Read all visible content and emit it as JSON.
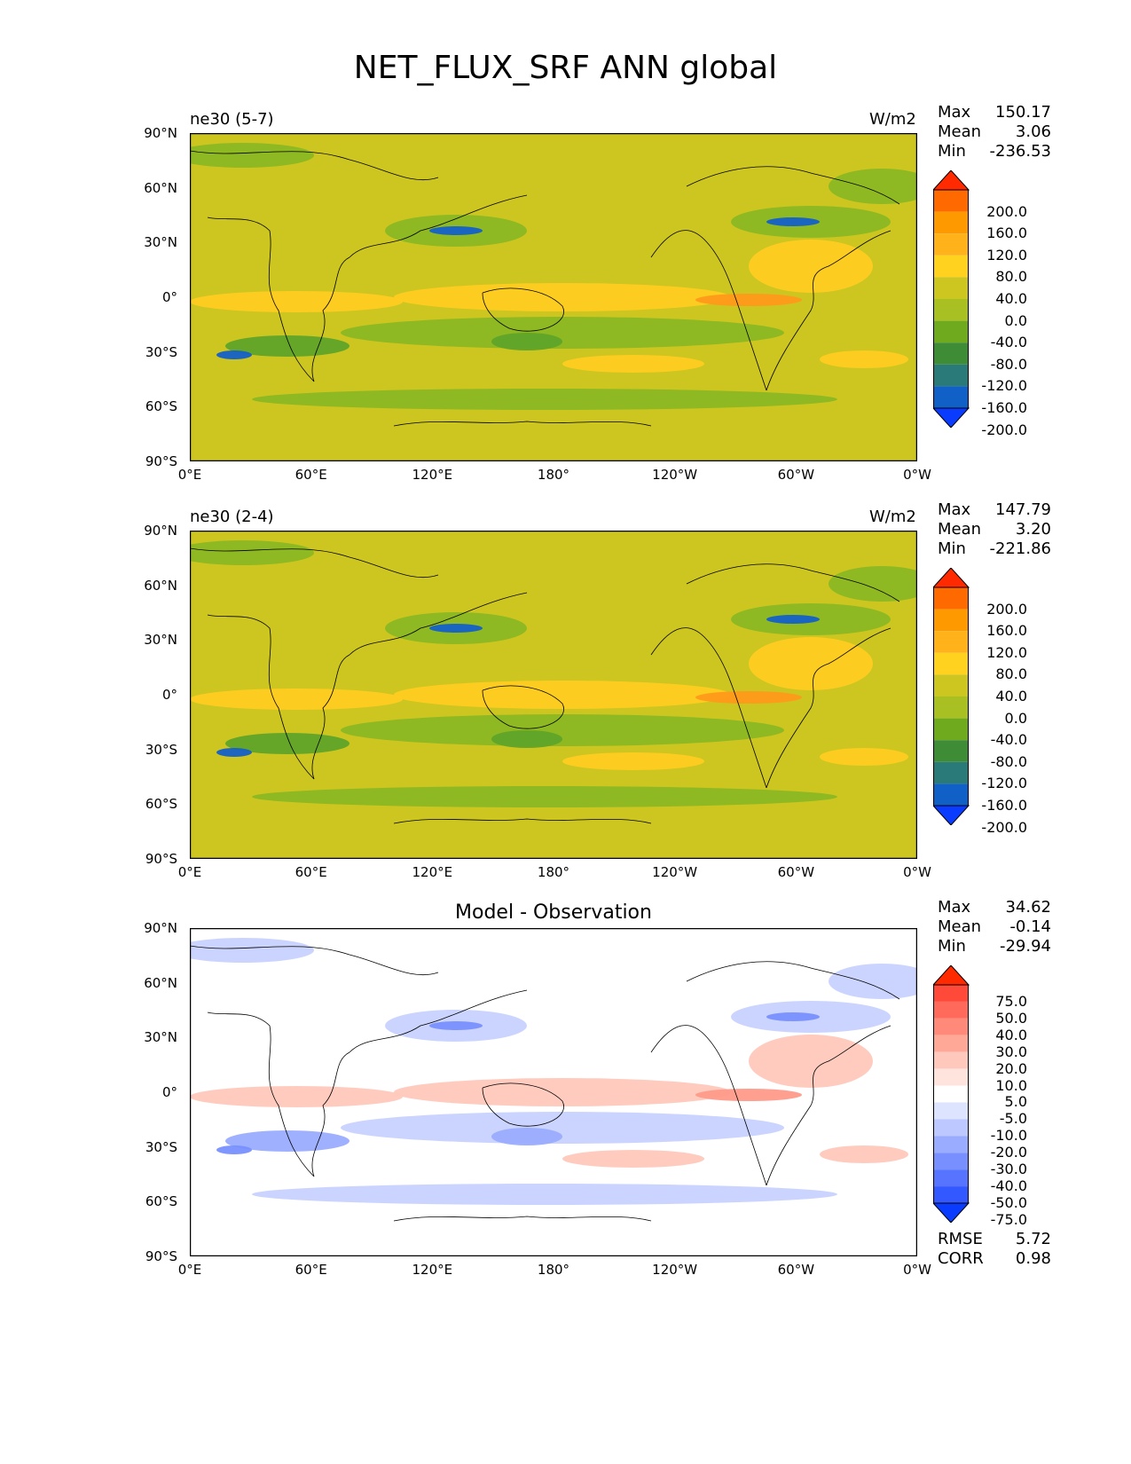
{
  "title": "NET_FLUX_SRF ANN global",
  "axes": {
    "lat_ticks": [
      "90°N",
      "60°N",
      "30°N",
      "0°",
      "30°S",
      "60°S",
      "90°S"
    ],
    "lon_ticks": [
      "0°E",
      "60°E",
      "120°E",
      "180°",
      "120°W",
      "60°W",
      "0°W"
    ]
  },
  "panels": [
    {
      "name": "ne30 (5-7)",
      "units": "W/m2",
      "center_title": "",
      "stats": {
        "max_label": "Max",
        "max": "150.17",
        "mean_label": "Mean",
        "mean": "3.06",
        "min_label": "Min",
        "min": "-236.53"
      },
      "colorbar": {
        "labels": [
          "200.0",
          "160.0",
          "120.0",
          "80.0",
          "40.0",
          "0.0",
          "-40.0",
          "-80.0",
          "-120.0",
          "-160.0",
          "-200.0"
        ],
        "colors": [
          "#ff2a00",
          "#ff6a00",
          "#ff9900",
          "#ffb21a",
          "#ffd21f",
          "#cdc620",
          "#a8c022",
          "#6faa1e",
          "#3e8c35",
          "#2a7a7a",
          "#1060c8",
          "#0a3cff"
        ]
      },
      "map_colors": {
        "base": "#cdc620",
        "positive": "#ffcc22",
        "positive_strong": "#ff9a1a",
        "negative": "#8ab823",
        "negative_mid": "#5fa42a",
        "negative_strong": "#1460c8"
      }
    },
    {
      "name": "ne30 (2-4)",
      "units": "W/m2",
      "center_title": "",
      "stats": {
        "max_label": "Max",
        "max": "147.79",
        "mean_label": "Mean",
        "mean": "3.20",
        "min_label": "Min",
        "min": "-221.86"
      },
      "colorbar": {
        "labels": [
          "200.0",
          "160.0",
          "120.0",
          "80.0",
          "40.0",
          "0.0",
          "-40.0",
          "-80.0",
          "-120.0",
          "-160.0",
          "-200.0"
        ],
        "colors": [
          "#ff2a00",
          "#ff6a00",
          "#ff9900",
          "#ffb21a",
          "#ffd21f",
          "#cdc620",
          "#a8c022",
          "#6faa1e",
          "#3e8c35",
          "#2a7a7a",
          "#1060c8",
          "#0a3cff"
        ]
      },
      "map_colors": {
        "base": "#cdc620",
        "positive": "#ffcc22",
        "positive_strong": "#ff9a1a",
        "negative": "#8ab823",
        "negative_mid": "#5fa42a",
        "negative_strong": "#1460c8"
      }
    },
    {
      "name": "",
      "units": "",
      "center_title": "Model - Observation",
      "stats": {
        "max_label": "Max",
        "max": "34.62",
        "mean_label": "Mean",
        "mean": "-0.14",
        "min_label": "Min",
        "min": "-29.94"
      },
      "colorbar": {
        "labels": [
          "75.0",
          "50.0",
          "40.0",
          "30.0",
          "20.0",
          "10.0",
          "5.0",
          "-5.0",
          "-10.0",
          "-20.0",
          "-30.0",
          "-40.0",
          "-50.0",
          "-75.0"
        ],
        "colors": [
          "#ff2a00",
          "#ff4a3a",
          "#ff6a5a",
          "#ff8a7a",
          "#ffa898",
          "#ffc8bc",
          "#ffe4de",
          "#ffffff",
          "#dde4ff",
          "#bcc8ff",
          "#9aacff",
          "#7890ff",
          "#5674ff",
          "#3458ff",
          "#0a3cff"
        ]
      },
      "metrics": {
        "rmse_label": "RMSE",
        "rmse": "5.72",
        "corr_label": "CORR",
        "corr": "0.98"
      },
      "map_colors": {
        "base": "#ffffff",
        "positive": "#ffc8bc",
        "positive_strong": "#ff9a8a",
        "negative": "#c8d2ff",
        "negative_mid": "#9aacff",
        "negative_strong": "#7890ff"
      }
    }
  ]
}
